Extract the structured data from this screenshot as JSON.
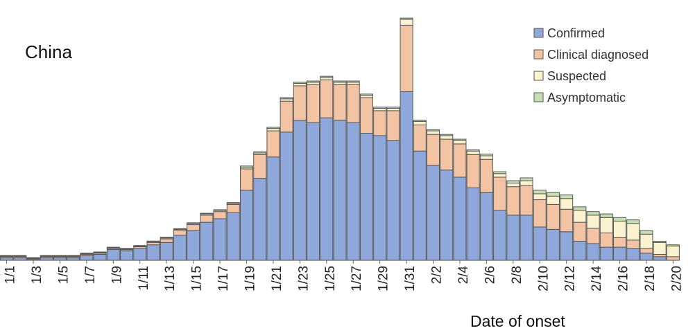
{
  "chart_data": {
    "type": "bar",
    "stacked": true,
    "title": "China",
    "xlabel": "Date of onset",
    "ylabel": "",
    "ylim": [
      0,
      100
    ],
    "grid": false,
    "legend_position": "top-right",
    "tick_labels": [
      "1/1",
      "1/3",
      "1/5",
      "1/7",
      "1/9",
      "1/11",
      "1/13",
      "1/15",
      "1/17",
      "1/19",
      "1/21",
      "1/23",
      "1/25",
      "1/27",
      "1/29",
      "1/31",
      "2/2",
      "2/4",
      "2/6",
      "2/8",
      "2/10",
      "2/12",
      "2/14",
      "2/16",
      "2/18",
      "2/20"
    ],
    "categories": [
      "1/1",
      "1/2",
      "1/3",
      "1/4",
      "1/5",
      "1/6",
      "1/7",
      "1/8",
      "1/9",
      "1/10",
      "1/11",
      "1/12",
      "1/13",
      "1/14",
      "1/15",
      "1/16",
      "1/17",
      "1/18",
      "1/19",
      "1/20",
      "1/21",
      "1/22",
      "1/23",
      "1/24",
      "1/25",
      "1/26",
      "1/27",
      "1/28",
      "1/29",
      "1/30",
      "1/31",
      "2/1",
      "2/2",
      "2/3",
      "2/4",
      "2/5",
      "2/6",
      "2/7",
      "2/8",
      "2/9",
      "2/10",
      "2/11",
      "2/12",
      "2/13",
      "2/14",
      "2/15",
      "2/16",
      "2/17",
      "2/18",
      "2/19",
      "2/20"
    ],
    "series": [
      {
        "name": "Confirmed",
        "color": "#8fa8dc",
        "values": [
          1.0,
          1.0,
          0.5,
          1.0,
          1.0,
          1.0,
          2.0,
          2.5,
          4.5,
          4.0,
          5.0,
          6.5,
          7.5,
          10.5,
          12.5,
          16.0,
          17.5,
          20.0,
          29.5,
          34.5,
          43.5,
          54.0,
          59.0,
          58.0,
          60.0,
          59.0,
          58.0,
          53.5,
          52.5,
          50.5,
          71.0,
          46.0,
          40.0,
          38.0,
          35.0,
          30.5,
          28.5,
          21.0,
          19.0,
          19.0,
          14.0,
          13.0,
          12.0,
          8.0,
          7.0,
          5.5,
          5.5,
          5.0,
          3.0,
          1.5,
          0
        ]
      },
      {
        "name": "Clinical diagnosed",
        "color": "#f2c4a4",
        "values": [
          0.5,
          0.5,
          0.3,
          0.5,
          0.5,
          0.5,
          0.5,
          0.5,
          0.5,
          0.5,
          0.7,
          1.0,
          1.5,
          2.0,
          2.5,
          3.0,
          3.0,
          3.5,
          9.0,
          10.0,
          11.0,
          13.0,
          14.5,
          16.0,
          16.0,
          15.0,
          16.0,
          15.0,
          10.5,
          12.5,
          28.0,
          11.0,
          13.0,
          13.0,
          14.0,
          14.0,
          14.0,
          14.0,
          12.0,
          12.5,
          11.5,
          10.5,
          9.5,
          8.0,
          6.5,
          6.0,
          4.0,
          3.5,
          2.0,
          1.0,
          1.5
        ]
      },
      {
        "name": "Suspected",
        "color": "#fbf2cf",
        "values": [
          0.3,
          0.3,
          0.2,
          0.3,
          0.3,
          0.3,
          0.3,
          0.3,
          0.3,
          0.3,
          0.3,
          0.4,
          0.4,
          0.5,
          0.5,
          0.5,
          0.5,
          0.5,
          0.7,
          0.7,
          1.0,
          1.0,
          1.0,
          1.0,
          1.0,
          1.0,
          1.0,
          1.0,
          1.0,
          1.0,
          2.5,
          1.5,
          1.5,
          1.5,
          1.5,
          1.5,
          1.5,
          1.5,
          1.5,
          2.0,
          2.5,
          3.5,
          4.5,
          5.0,
          5.5,
          6.5,
          7.0,
          7.0,
          6.0,
          5.0,
          4.5
        ]
      },
      {
        "name": "Asymptomatic",
        "color": "#c6dfb2",
        "values": [
          0.2,
          0.2,
          0.1,
          0.2,
          0.2,
          0.2,
          0.2,
          0.2,
          0.2,
          0.2,
          0.2,
          0.2,
          0.3,
          0.3,
          0.3,
          0.3,
          0.3,
          0.3,
          0.5,
          0.5,
          0.5,
          0.5,
          0.5,
          0.5,
          0.5,
          0.5,
          0.5,
          0.5,
          0.5,
          0.5,
          0.5,
          0.5,
          0.5,
          0.5,
          0.5,
          0.5,
          0.7,
          0.8,
          1.0,
          1.2,
          1.5,
          1.5,
          1.5,
          1.5,
          1.5,
          1.5,
          1.5,
          1.5,
          1.5,
          0.5,
          0.5
        ]
      }
    ]
  }
}
